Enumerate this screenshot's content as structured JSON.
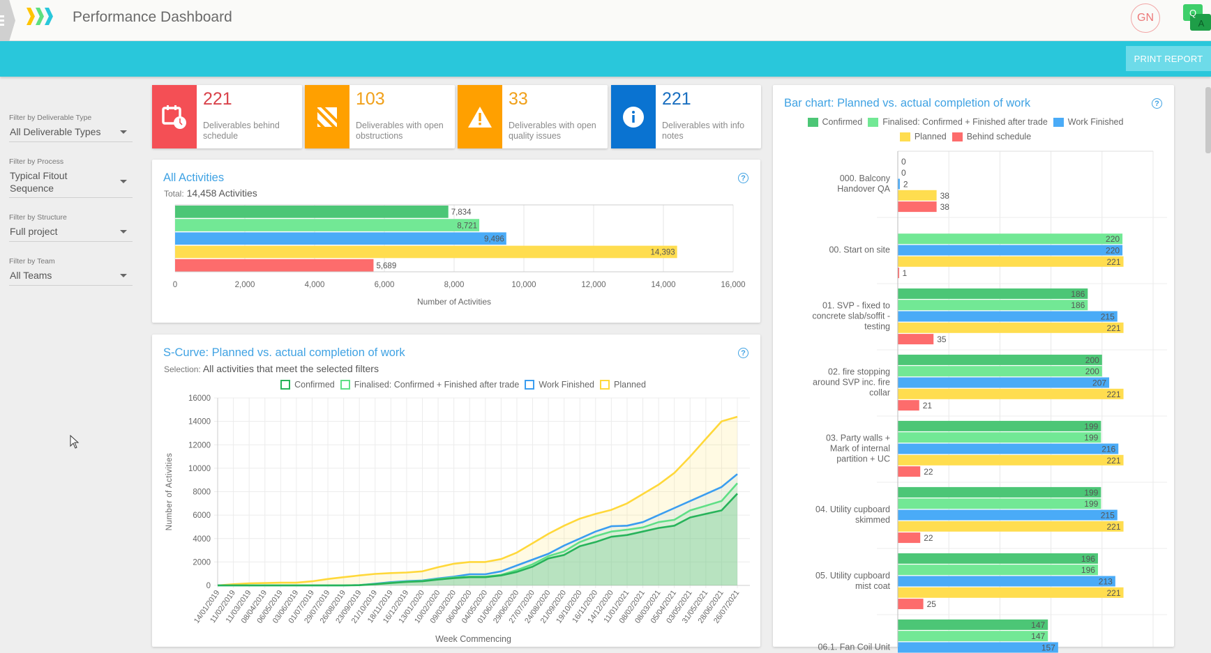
{
  "header": {
    "title": "Performance Dashboard",
    "avatar_initials": "GN",
    "qa_letters": [
      "Q",
      "A"
    ]
  },
  "toolbar": {
    "print_label": "PRINT REPORT"
  },
  "filters": [
    {
      "label": "Filter by Deliverable Type",
      "value": "All Deliverable Types"
    },
    {
      "label": "Filter by Process",
      "value": "Typical Fitout Sequence"
    },
    {
      "label": "Filter by Structure",
      "value": "Full project"
    },
    {
      "label": "Filter by Team",
      "value": "All Teams"
    }
  ],
  "cards": [
    {
      "value": "221",
      "label": "Deliverables behind schedule",
      "icon": "calendar-clock-icon",
      "color": "#f44f55",
      "text_color": "#d9434b"
    },
    {
      "value": "103",
      "label": "Deliverables with open obstructions",
      "icon": "obstruction-icon",
      "color": "#ffa000",
      "text_color": "#f0a01a"
    },
    {
      "value": "33",
      "label": "Deliverables with open quality issues",
      "icon": "warning-icon",
      "color": "#ffa000",
      "text_color": "#f0a01a"
    },
    {
      "value": "221",
      "label": "Deliverables with info notes",
      "icon": "info-icon",
      "color": "#0a73d1",
      "text_color": "#1a6fc0"
    }
  ],
  "all_activities": {
    "total_prefix": "Total:",
    "total_value": "14,458 Activities"
  },
  "s_curve": {
    "selection_prefix": "Selection:",
    "selection_value": "All activities that meet the selected filters"
  },
  "colors": {
    "confirmed": "#4cc676",
    "finalised": "#72e895",
    "work_finished": "#4aabf7",
    "planned": "#ffdd4f",
    "behind": "#fd6c6c",
    "accent": "#29c7db"
  },
  "chart_data": [
    {
      "type": "bar",
      "orientation": "horizontal",
      "title": "All Activities",
      "values": [
        7834,
        8721,
        9496,
        14393,
        5689
      ],
      "value_labels": [
        "7,834",
        "8,721",
        "9,496",
        "14,393",
        "5,689"
      ],
      "colors": [
        "#4cc676",
        "#72e895",
        "#4aabf7",
        "#ffdd4f",
        "#fd6c6c"
      ],
      "xlabel": "Number of Activities",
      "xlim": [
        0,
        16000
      ],
      "xticks": [
        "0",
        "2,000",
        "4,000",
        "6,000",
        "8,000",
        "10,000",
        "12,000",
        "14,000",
        "16,000"
      ],
      "grid": true
    },
    {
      "type": "area",
      "title": "S-Curve: Planned vs. actual completion of work",
      "xlabel": "Week Commencing",
      "ylabel": "Number of Activities",
      "ylim": [
        0,
        16000
      ],
      "yticks": [
        "0",
        "2000",
        "4000",
        "6000",
        "8000",
        "10000",
        "12000",
        "14000",
        "16000"
      ],
      "legend_position": "top",
      "grid": true,
      "x": [
        "14/01/2019",
        "11/02/2019",
        "11/03/2019",
        "08/04/2019",
        "06/05/2019",
        "03/06/2019",
        "01/07/2019",
        "29/07/2019",
        "26/08/2019",
        "23/09/2019",
        "21/10/2019",
        "18/11/2019",
        "16/12/2019",
        "13/01/2020",
        "10/02/2020",
        "09/03/2020",
        "06/04/2020",
        "04/05/2020",
        "01/06/2020",
        "29/06/2020",
        "27/07/2020",
        "24/08/2020",
        "21/09/2020",
        "19/10/2020",
        "16/11/2020",
        "14/12/2020",
        "11/01/2021",
        "08/02/2021",
        "08/03/2021",
        "05/04/2021",
        "03/05/2021",
        "31/05/2021",
        "28/06/2021",
        "26/07/2021"
      ],
      "series": [
        {
          "name": "Planned",
          "color": "#ffd83a",
          "values": [
            0,
            100,
            180,
            200,
            230,
            230,
            350,
            550,
            700,
            850,
            980,
            1050,
            1100,
            1200,
            1550,
            1850,
            2000,
            2000,
            2250,
            2800,
            3600,
            4400,
            5100,
            5700,
            6100,
            6450,
            7000,
            7800,
            8600,
            9600,
            11000,
            12500,
            14000,
            14393
          ]
        },
        {
          "name": "Work Finished",
          "color": "#3a9df0",
          "values": [
            0,
            0,
            0,
            0,
            0,
            0,
            0,
            0,
            0,
            30,
            150,
            280,
            370,
            420,
            600,
            750,
            950,
            950,
            1200,
            1700,
            2200,
            2700,
            3400,
            4000,
            4600,
            5050,
            5100,
            5400,
            6000,
            6600,
            7200,
            7800,
            8400,
            9496
          ]
        },
        {
          "name": "Finalised: Confirmed + Finished after trade",
          "color": "#5fdf86",
          "values": [
            0,
            0,
            0,
            0,
            0,
            0,
            0,
            0,
            0,
            30,
            120,
            230,
            330,
            380,
            550,
            680,
            750,
            750,
            900,
            1300,
            1800,
            2500,
            2900,
            3700,
            4200,
            4600,
            4750,
            4950,
            5400,
            5600,
            6400,
            6800,
            7200,
            8721
          ]
        },
        {
          "name": "Confirmed",
          "color": "#27b35a",
          "values": [
            0,
            0,
            0,
            0,
            0,
            0,
            0,
            0,
            0,
            20,
            100,
            200,
            300,
            350,
            500,
            620,
            700,
            700,
            850,
            1150,
            1600,
            2300,
            2600,
            3350,
            3700,
            4150,
            4300,
            4600,
            4900,
            5100,
            5800,
            6100,
            6400,
            7834
          ]
        }
      ]
    },
    {
      "type": "bar",
      "orientation": "horizontal",
      "title": "Bar chart: Planned vs. actual completion of work",
      "legend_position": "top",
      "xlim": [
        0,
        250
      ],
      "grid": true,
      "categories": [
        "000. Balcony Handover QA",
        "00. Start on site",
        "01. SVP - fixed to concrete slab/soffit - testing",
        "02. fire stopping around SVP inc. fire collar",
        "03. Party walls + Mark of internal partition +  UC",
        "04. Utility cupboard skimmed",
        "05. Utility cupboard mist coat",
        "06.1. Fan Coil Unit"
      ],
      "series": [
        {
          "name": "Confirmed",
          "color": "#4cc676",
          "values": [
            0,
            null,
            186,
            200,
            199,
            199,
            196,
            147
          ]
        },
        {
          "name": "Finalised: Confirmed + Finished after trade",
          "color": "#72e895",
          "values": [
            0,
            220,
            186,
            200,
            199,
            199,
            196,
            147
          ]
        },
        {
          "name": "Work Finished",
          "color": "#4aabf7",
          "values": [
            2,
            220,
            215,
            207,
            216,
            215,
            213,
            157
          ]
        },
        {
          "name": "Planned",
          "color": "#ffdd4f",
          "values": [
            38,
            221,
            221,
            221,
            221,
            221,
            221,
            null
          ]
        },
        {
          "name": "Behind schedule",
          "color": "#fd6c6c",
          "values": [
            38,
            1,
            35,
            21,
            22,
            22,
            25,
            null
          ]
        }
      ]
    }
  ]
}
